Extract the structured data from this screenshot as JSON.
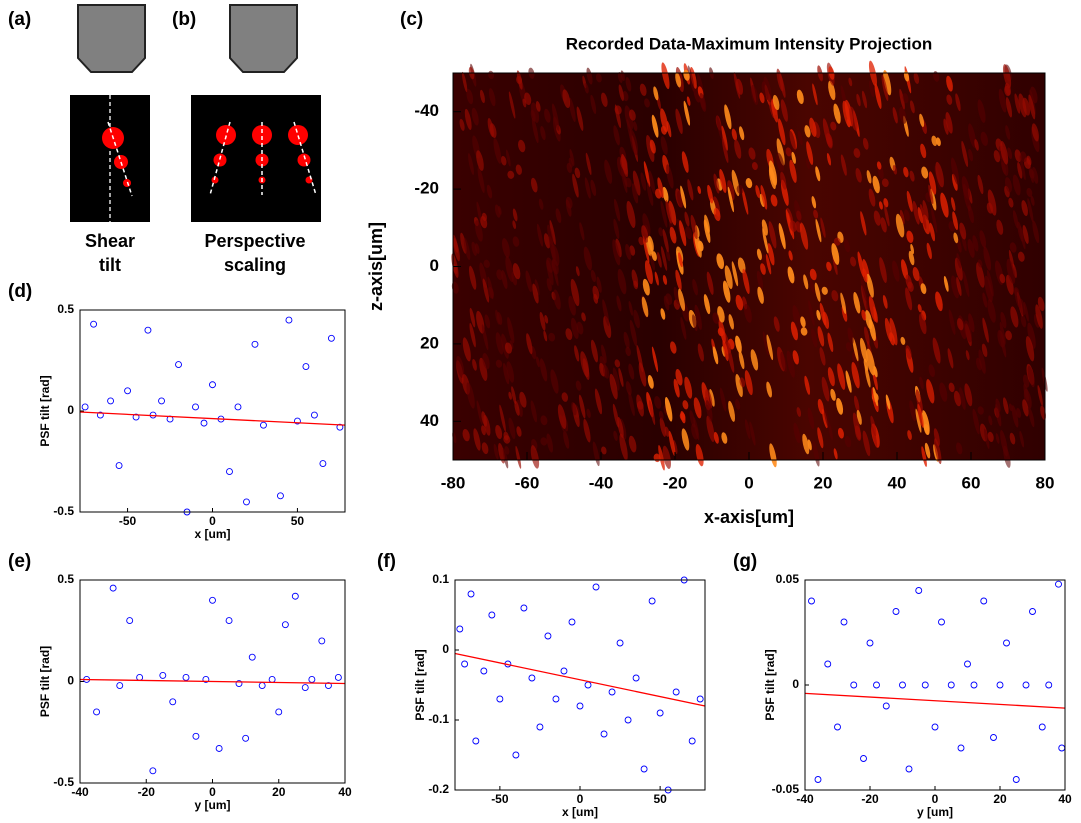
{
  "schematics": [
    {
      "panel_label": "(a)",
      "caption": [
        "Shear",
        "tilt"
      ]
    },
    {
      "panel_label": "(b)",
      "caption": [
        "Perspective",
        "scaling"
      ]
    }
  ],
  "chart_data": [
    {
      "type": "heatmap",
      "panel_label": "(c)",
      "title": "Recorded Data-Maximum Intensity Projection",
      "xlabel": "x-axis[um]",
      "ylabel": "z-axis[um]",
      "xlim": [
        -80,
        80
      ],
      "ylim": [
        -50,
        50
      ],
      "y_reversed": true,
      "xticks": [
        -80,
        -60,
        -40,
        -20,
        0,
        20,
        40,
        60,
        80
      ],
      "yticks": [
        -40,
        -20,
        0,
        20,
        40
      ]
    },
    {
      "type": "scatter",
      "panel_label": "(d)",
      "xlabel": "x [um]",
      "ylabel": "PSF tilt [rad]",
      "xlim": [
        -78,
        78
      ],
      "ylim": [
        -0.5,
        0.5
      ],
      "xticks": [
        -50,
        0,
        50
      ],
      "yticks": [
        -0.5,
        0,
        0.5
      ],
      "series": [
        {
          "style": "markers",
          "color": "#0000ff",
          "x": [
            -75,
            -70,
            -66,
            -60,
            -55,
            -50,
            -45,
            -38,
            -35,
            -30,
            -25,
            -20,
            -15,
            -10,
            -5,
            0,
            5,
            10,
            15,
            20,
            25,
            30,
            40,
            45,
            50,
            55,
            60,
            65,
            70,
            75
          ],
          "values": [
            0.02,
            0.43,
            -0.02,
            0.05,
            -0.27,
            0.1,
            -0.03,
            0.4,
            -0.02,
            0.05,
            -0.04,
            0.23,
            -0.5,
            0.02,
            -0.06,
            0.13,
            -0.04,
            -0.3,
            0.02,
            -0.45,
            0.33,
            -0.07,
            -0.42,
            0.45,
            -0.05,
            0.22,
            -0.02,
            -0.26,
            0.36,
            -0.08
          ]
        },
        {
          "style": "line",
          "color": "#ff0000",
          "x": [
            -78,
            78
          ],
          "values": [
            -0.005,
            -0.07
          ]
        }
      ]
    },
    {
      "type": "scatter",
      "panel_label": "(e)",
      "xlabel": "y [um]",
      "ylabel": "PSF tilt [rad]",
      "xlim": [
        -40,
        40
      ],
      "ylim": [
        -0.5,
        0.5
      ],
      "xticks": [
        -40,
        -20,
        0,
        20,
        40
      ],
      "yticks": [
        -0.5,
        0,
        0.5
      ],
      "series": [
        {
          "style": "markers",
          "color": "#0000ff",
          "x": [
            -38,
            -35,
            -30,
            -28,
            -25,
            -22,
            -18,
            -15,
            -12,
            -8,
            -5,
            -2,
            0,
            2,
            5,
            8,
            10,
            12,
            15,
            18,
            20,
            22,
            25,
            28,
            30,
            33,
            35,
            38
          ],
          "values": [
            0.01,
            -0.15,
            0.46,
            -0.02,
            0.3,
            0.02,
            -0.44,
            0.03,
            -0.1,
            0.02,
            -0.27,
            0.01,
            0.4,
            -0.33,
            0.3,
            -0.01,
            -0.28,
            0.12,
            -0.02,
            0.01,
            -0.15,
            0.28,
            0.42,
            -0.03,
            0.01,
            0.2,
            -0.02,
            0.02
          ]
        },
        {
          "style": "line",
          "color": "#ff0000",
          "x": [
            -40,
            40
          ],
          "values": [
            0.01,
            -0.01
          ]
        }
      ]
    },
    {
      "type": "scatter",
      "panel_label": "(f)",
      "xlabel": "x [um]",
      "ylabel": "PSF tilt [rad]",
      "xlim": [
        -78,
        78
      ],
      "ylim": [
        -0.2,
        0.1
      ],
      "xticks": [
        -50,
        0,
        50
      ],
      "yticks": [
        -0.2,
        -0.1,
        0,
        0.1
      ],
      "series": [
        {
          "style": "markers",
          "color": "#0000ff",
          "x": [
            -75,
            -72,
            -68,
            -65,
            -60,
            -55,
            -50,
            -45,
            -40,
            -35,
            -30,
            -25,
            -20,
            -15,
            -10,
            -5,
            0,
            5,
            10,
            15,
            20,
            25,
            30,
            35,
            40,
            45,
            50,
            55,
            60,
            65,
            70,
            75
          ],
          "values": [
            0.03,
            -0.02,
            0.08,
            -0.13,
            -0.03,
            0.05,
            -0.07,
            -0.02,
            -0.15,
            0.06,
            -0.04,
            -0.11,
            0.02,
            -0.07,
            -0.03,
            0.04,
            -0.08,
            -0.05,
            0.09,
            -0.12,
            -0.06,
            0.01,
            -0.1,
            -0.04,
            -0.17,
            0.07,
            -0.09,
            -0.2,
            -0.06,
            0.1,
            -0.13,
            -0.07
          ]
        },
        {
          "style": "line",
          "color": "#ff0000",
          "x": [
            -78,
            78
          ],
          "values": [
            -0.005,
            -0.08
          ]
        }
      ]
    },
    {
      "type": "scatter",
      "panel_label": "(g)",
      "xlabel": "y [um]",
      "ylabel": "PSF tilt [rad]",
      "xlim": [
        -40,
        40
      ],
      "ylim": [
        -0.05,
        0.05
      ],
      "xticks": [
        -40,
        -20,
        0,
        20,
        40
      ],
      "yticks": [
        -0.05,
        0,
        0.05
      ],
      "series": [
        {
          "style": "markers",
          "color": "#0000ff",
          "x": [
            -38,
            -36,
            -33,
            -30,
            -28,
            -25,
            -22,
            -20,
            -18,
            -15,
            -12,
            -10,
            -8,
            -5,
            -3,
            0,
            2,
            5,
            8,
            10,
            12,
            15,
            18,
            20,
            22,
            25,
            28,
            30,
            33,
            35,
            38,
            39
          ],
          "values": [
            0.04,
            -0.045,
            0.01,
            -0.02,
            0.03,
            0,
            -0.035,
            0.02,
            0,
            -0.01,
            0.035,
            0,
            -0.04,
            0.045,
            0,
            -0.02,
            0.03,
            0,
            -0.03,
            0.01,
            0,
            0.04,
            -0.025,
            0,
            0.02,
            -0.045,
            0,
            0.035,
            -0.02,
            0,
            0.048,
            -0.03
          ]
        },
        {
          "style": "line",
          "color": "#ff0000",
          "x": [
            -40,
            40
          ],
          "values": [
            -0.004,
            -0.011
          ]
        }
      ]
    }
  ]
}
